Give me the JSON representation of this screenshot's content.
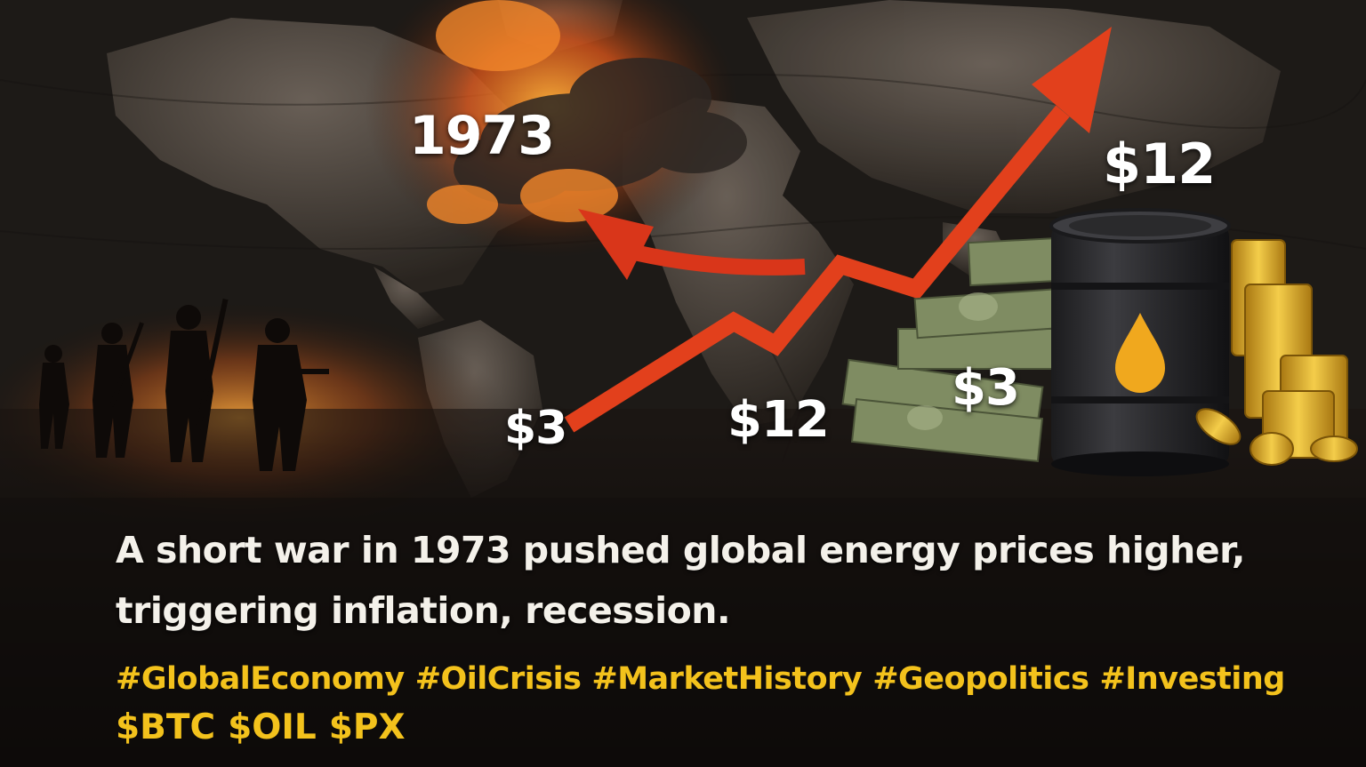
{
  "labels": {
    "year": "1973",
    "price_start": "$3",
    "price_mid": "$12",
    "price_barrel_low": "$3",
    "price_barrel_high": "$12"
  },
  "caption": "A short war in 1973 pushed global energy prices higher, triggering inflation, recession.",
  "hashtags": [
    "#GlobalEconomy",
    "#OilCrisis",
    "#MarketHistory",
    "#Geopolitics",
    "#Investing"
  ],
  "tickers": [
    "$BTC",
    "$OIL",
    "$PX"
  ],
  "colors": {
    "arrow": "#e2401c",
    "accent_text": "#f3c21c",
    "caption_text": "#f4f1ea",
    "fire": "#f08a1c",
    "barrel": "#2a2a2c",
    "drop": "#f0a81e",
    "gold": "#d9a21c",
    "cash": "#8a9a6a"
  },
  "icons": [
    "world-map",
    "fire-smoke",
    "soldier-silhouettes",
    "oil-barrel",
    "oil-drop-icon",
    "cash-stack",
    "gold-coin-stack",
    "rising-arrow"
  ]
}
